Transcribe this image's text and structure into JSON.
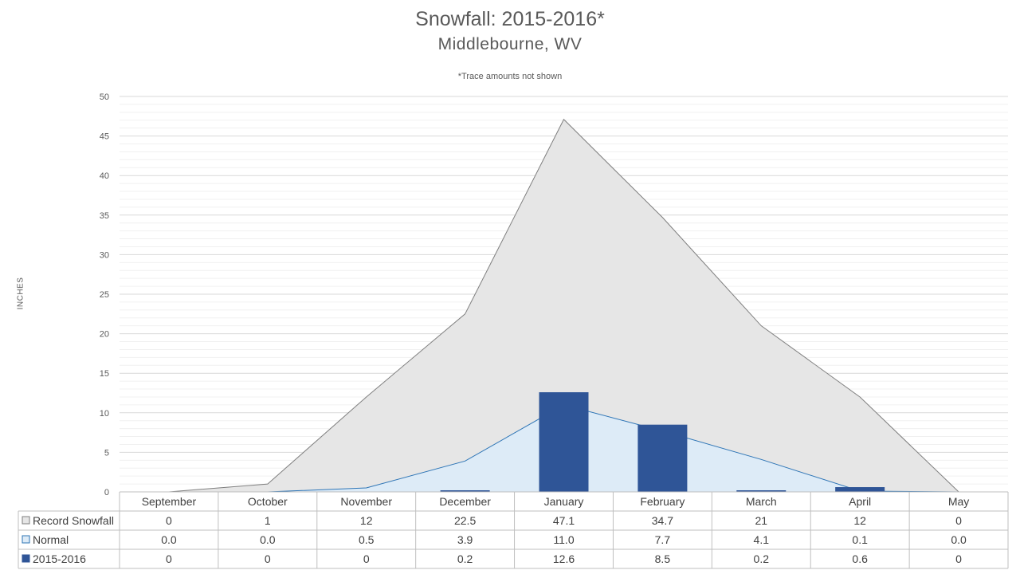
{
  "chart_data": {
    "type": "bar",
    "title": "Snowfall: 2015-2016*",
    "subtitle": "Middlebourne, WV",
    "annotation": "*Trace amounts not shown",
    "ylabel": "INCHES",
    "ylim": [
      0,
      50
    ],
    "yticks": [
      0,
      5,
      10,
      15,
      20,
      25,
      30,
      35,
      40,
      45,
      50
    ],
    "grid": true,
    "legend": "data-table",
    "categories": [
      "September",
      "October",
      "November",
      "December",
      "January",
      "February",
      "March",
      "April",
      "May"
    ],
    "series": [
      {
        "name": "Record Snowfall",
        "type": "area",
        "color": "#e6e6e6",
        "line_color": "#7f7f7f",
        "values": [
          0,
          1,
          12,
          22.5,
          47.1,
          34.7,
          21,
          12,
          0
        ],
        "labels": [
          "0",
          "1",
          "12",
          "22.5",
          "47.1",
          "34.7",
          "21",
          "12",
          "0"
        ]
      },
      {
        "name": "Normal",
        "type": "area",
        "color": "#ddebf7",
        "line_color": "#2e75b6",
        "values": [
          0.0,
          0.0,
          0.5,
          3.9,
          11.0,
          7.7,
          4.1,
          0.1,
          0.0
        ],
        "labels": [
          "0.0",
          "0.0",
          "0.5",
          "3.9",
          "11.0",
          "7.7",
          "4.1",
          "0.1",
          "0.0"
        ]
      },
      {
        "name": "2015-2016",
        "type": "bar",
        "color": "#2f5597",
        "values": [
          0,
          0,
          0,
          0.2,
          12.6,
          8.5,
          0.2,
          0.6,
          0
        ],
        "labels": [
          "0",
          "0",
          "0",
          "0.2",
          "12.6",
          "8.5",
          "0.2",
          "0.6",
          "0"
        ]
      }
    ]
  }
}
